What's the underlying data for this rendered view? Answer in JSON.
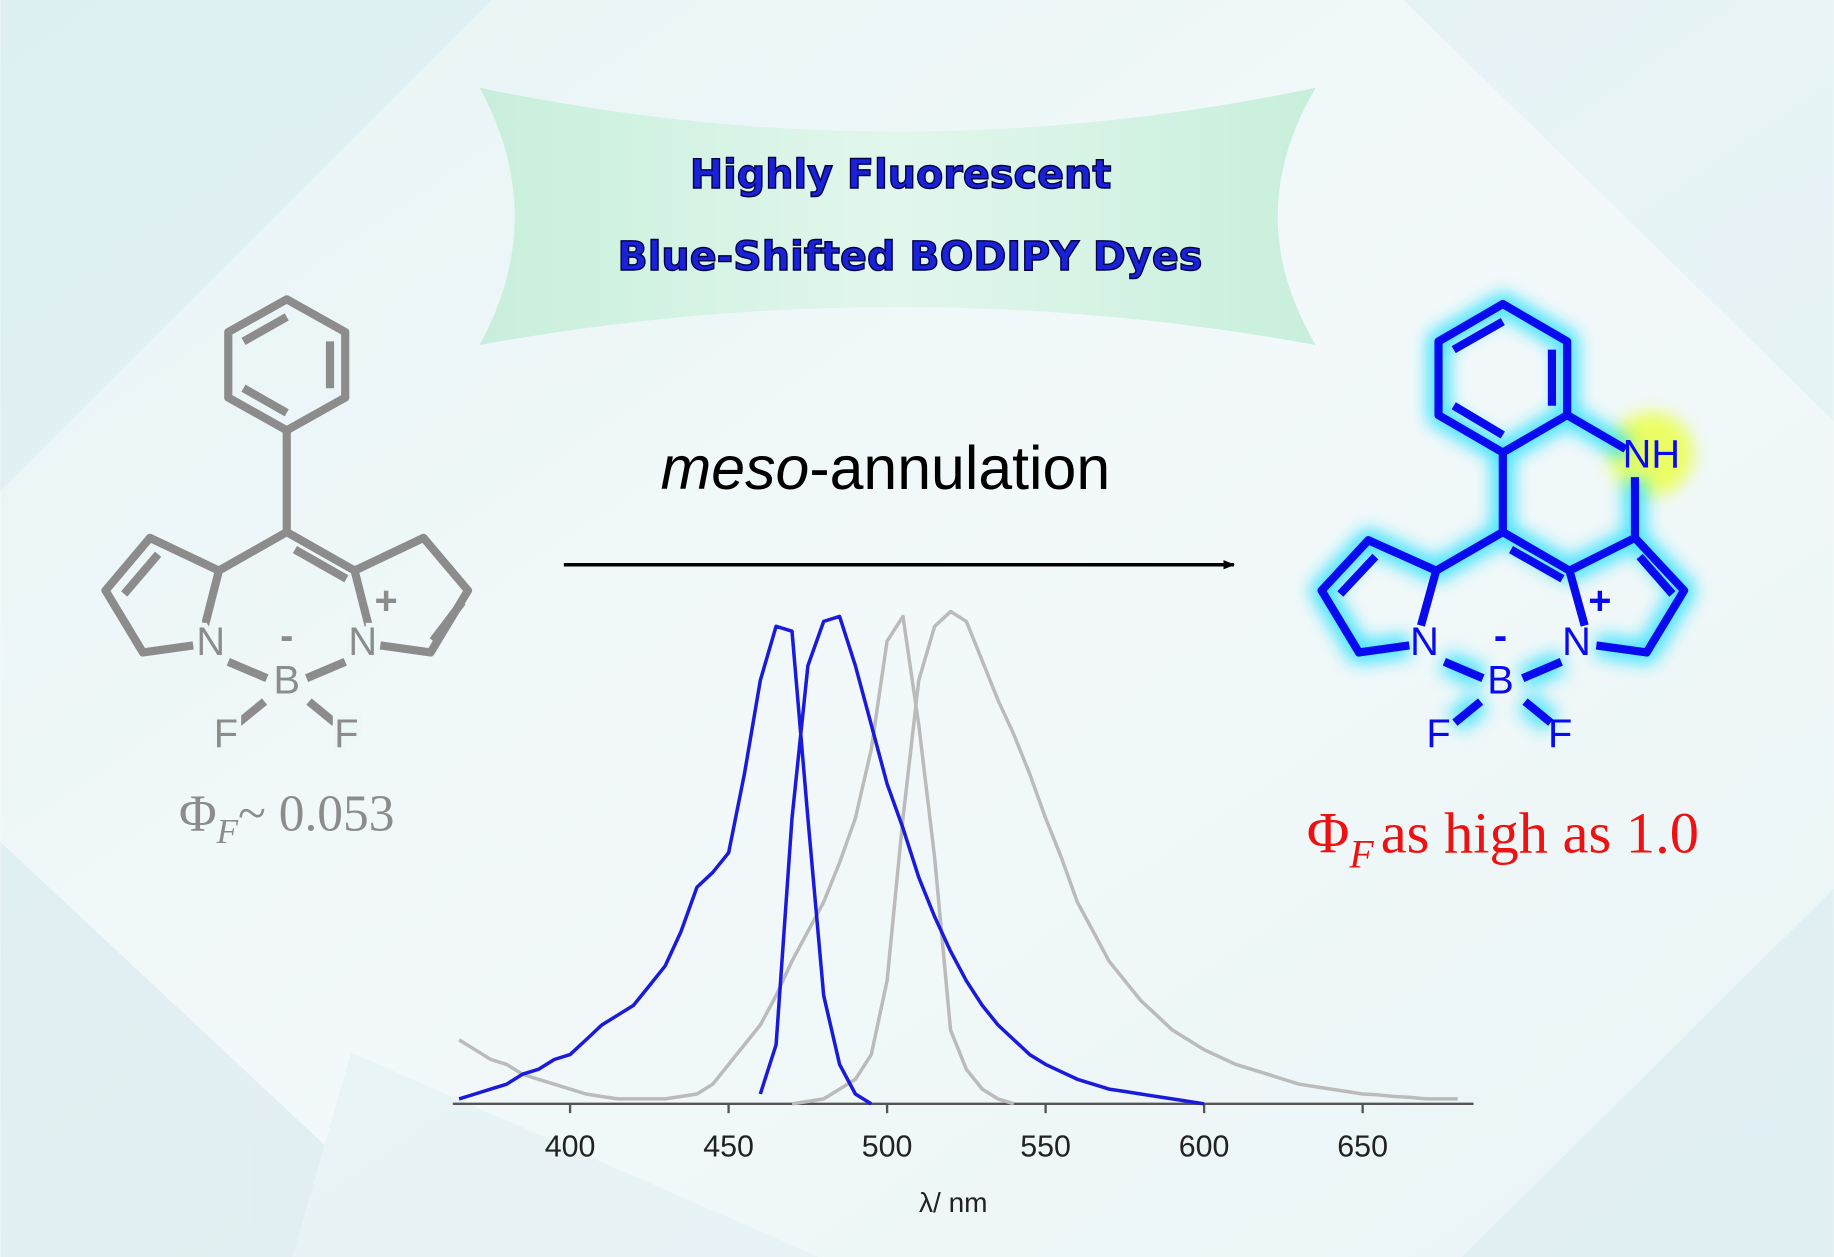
{
  "banner": {
    "lines": [
      "Highly Fluorescent",
      "Blue-Shifted BODIPY Dyes"
    ]
  },
  "arrow_label": {
    "italic": "meso",
    "rest": "-annulation"
  },
  "left_molecule": {
    "atoms": [
      "N",
      "N",
      "B",
      "F",
      "F"
    ],
    "charges": [
      "-",
      "+"
    ],
    "yield": {
      "symbol": "Φ",
      "subscript": "F",
      "text": "~ 0.053"
    }
  },
  "right_molecule": {
    "atoms": [
      "N",
      "N",
      "B",
      "F",
      "F",
      "NH"
    ],
    "charges": [
      "-",
      "+"
    ],
    "yield": {
      "symbol": "Φ",
      "subscript": "F",
      "text": "as high as 1.0"
    }
  },
  "chart_data": {
    "type": "line",
    "x_label": "λ/ nm",
    "xlim": [
      363,
      685
    ],
    "xticks": [
      400,
      450,
      500,
      550,
      600,
      650
    ],
    "ylim": [
      0,
      1
    ],
    "x": [
      365,
      370,
      375,
      380,
      385,
      390,
      395,
      400,
      405,
      410,
      415,
      420,
      425,
      430,
      435,
      440,
      445,
      450,
      455,
      460,
      465,
      470,
      475,
      480,
      485,
      490,
      495,
      500,
      505,
      510,
      515,
      520,
      525,
      530,
      535,
      540,
      545,
      550,
      555,
      560,
      565,
      570,
      575,
      580,
      585,
      590,
      595,
      600,
      605,
      610,
      615,
      620,
      625,
      630,
      635,
      640,
      645,
      650,
      655,
      660,
      665,
      670,
      675,
      680
    ],
    "series": [
      {
        "color": "#bbbbbb",
        "values": [
          0.13,
          0.11,
          0.09,
          0.08,
          0.06,
          0.05,
          0.04,
          0.03,
          0.02,
          0.015,
          0.01,
          0.01,
          0.01,
          0.01,
          0.015,
          0.02,
          0.04,
          0.08,
          0.12,
          0.16,
          0.22,
          0.29,
          0.35,
          0.41,
          0.49,
          0.58,
          0.72,
          0.94,
          0.99,
          0.77,
          0.5,
          0.15,
          0.07,
          0.03,
          0.01,
          0.0,
          null,
          null,
          null,
          null,
          null,
          null,
          null,
          null,
          null,
          null,
          null,
          null,
          null,
          null,
          null,
          null,
          null,
          null,
          null,
          null,
          null,
          null,
          null,
          null,
          null,
          null,
          null,
          null
        ]
      },
      {
        "color": "#bbbbbb",
        "values": [
          null,
          null,
          null,
          null,
          null,
          null,
          null,
          null,
          null,
          null,
          null,
          null,
          null,
          null,
          null,
          null,
          null,
          null,
          null,
          null,
          null,
          0.0,
          0.005,
          0.01,
          0.03,
          0.05,
          0.1,
          0.25,
          0.58,
          0.86,
          0.97,
          1.0,
          0.98,
          0.9,
          0.82,
          0.75,
          0.67,
          0.58,
          0.5,
          0.41,
          0.35,
          0.29,
          0.25,
          0.21,
          0.18,
          0.15,
          0.13,
          0.11,
          0.095,
          0.08,
          0.07,
          0.06,
          0.05,
          0.04,
          0.035,
          0.03,
          0.025,
          0.02,
          0.018,
          0.015,
          0.013,
          0.01,
          0.01,
          0.01
        ]
      },
      {
        "color": "#1a1adc",
        "values": [
          0.01,
          0.02,
          0.03,
          0.04,
          0.06,
          0.07,
          0.09,
          0.1,
          0.13,
          0.16,
          0.18,
          0.2,
          0.24,
          0.28,
          0.35,
          0.44,
          0.47,
          0.51,
          0.67,
          0.86,
          0.97,
          0.96,
          0.58,
          0.22,
          0.08,
          0.02,
          0.0,
          null,
          null,
          null,
          null,
          null,
          null,
          null,
          null,
          null,
          null,
          null,
          null,
          null,
          null,
          null,
          null,
          null,
          null,
          null,
          null,
          null,
          null,
          null,
          null,
          null,
          null,
          null,
          null,
          null,
          null,
          null,
          null,
          null,
          null,
          null,
          null,
          null
        ]
      },
      {
        "color": "#1a1adc",
        "values": [
          null,
          null,
          null,
          null,
          null,
          null,
          null,
          null,
          null,
          null,
          null,
          null,
          null,
          null,
          null,
          null,
          null,
          null,
          null,
          0.02,
          0.12,
          0.58,
          0.89,
          0.98,
          0.99,
          0.89,
          0.77,
          0.65,
          0.56,
          0.46,
          0.38,
          0.31,
          0.25,
          0.2,
          0.16,
          0.13,
          0.1,
          0.08,
          0.065,
          0.05,
          0.04,
          0.03,
          0.025,
          0.02,
          0.015,
          0.01,
          0.005,
          0.0,
          null,
          null,
          null,
          null,
          null,
          null,
          null,
          null,
          null,
          null,
          null,
          null,
          null,
          null,
          null,
          null
        ]
      }
    ]
  }
}
